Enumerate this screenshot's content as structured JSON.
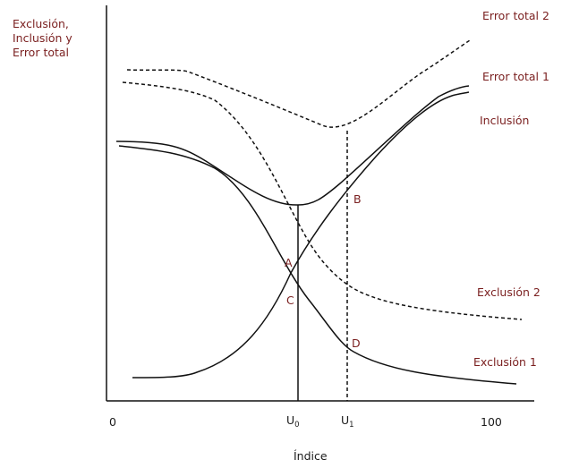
{
  "axis": {
    "y_title_lines": [
      "Exclusión,",
      "Inclusión y",
      "Error total"
    ],
    "x_title": "Índice",
    "tick_zero": "0",
    "tick_max": "100",
    "tick_u0_main": "U",
    "tick_u0_sub": "0",
    "tick_u1_main": "U",
    "tick_u1_sub": "1"
  },
  "curves": {
    "error_total_2": "Error  total 2",
    "error_total_1": "Error  total 1",
    "inclusion": "Inclusión",
    "exclusion_2": "Exclusión 2",
    "exclusion_1": "Exclusión 1"
  },
  "points": {
    "a": "A",
    "b": "B",
    "c": "C",
    "d": "D"
  }
}
